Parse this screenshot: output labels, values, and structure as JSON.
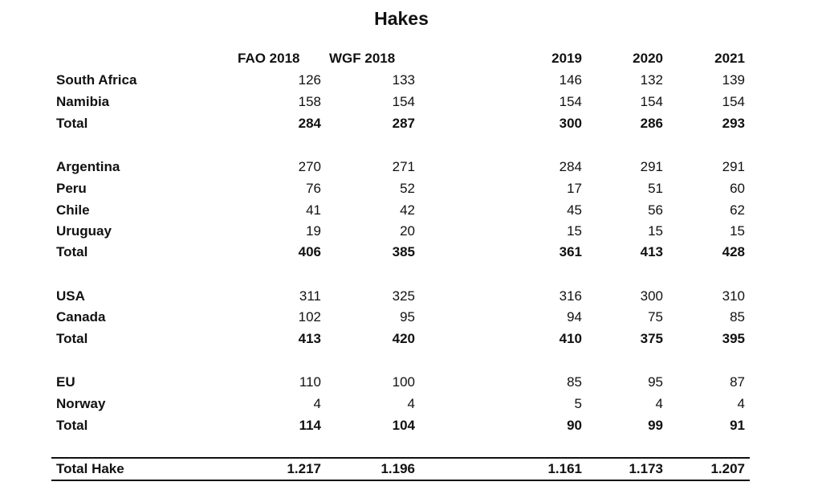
{
  "title": "Hakes",
  "headers": [
    "FAO 2018",
    "WGF 2018",
    "2019",
    "2020",
    "2021"
  ],
  "groups": [
    {
      "rows": [
        {
          "label": "South Africa",
          "values": [
            "126",
            "133",
            "146",
            "132",
            "139"
          ]
        },
        {
          "label": "Namibia",
          "values": [
            "158",
            "154",
            "154",
            "154",
            "154"
          ]
        }
      ],
      "total": {
        "label": "Total",
        "values": [
          "284",
          "287",
          "300",
          "286",
          "293"
        ]
      }
    },
    {
      "rows": [
        {
          "label": "Argentina",
          "values": [
            "270",
            "271",
            "284",
            "291",
            "291"
          ]
        },
        {
          "label": "Peru",
          "values": [
            "76",
            "52",
            "17",
            "51",
            "60"
          ]
        },
        {
          "label": "Chile",
          "values": [
            "41",
            "42",
            "45",
            "56",
            "62"
          ]
        },
        {
          "label": "Uruguay",
          "values": [
            "19",
            "20",
            "15",
            "15",
            "15"
          ]
        }
      ],
      "total": {
        "label": "Total",
        "values": [
          "406",
          "385",
          "361",
          "413",
          "428"
        ]
      }
    },
    {
      "rows": [
        {
          "label": "USA",
          "values": [
            "311",
            "325",
            "316",
            "300",
            "310"
          ]
        },
        {
          "label": "Canada",
          "values": [
            "102",
            "95",
            "94",
            "75",
            "85"
          ]
        }
      ],
      "total": {
        "label": "Total",
        "values": [
          "413",
          "420",
          "410",
          "375",
          "395"
        ]
      }
    },
    {
      "rows": [
        {
          "label": "EU",
          "values": [
            "110",
            "100",
            "85",
            "95",
            "87"
          ]
        },
        {
          "label": "Norway",
          "values": [
            "4",
            "4",
            "5",
            "4",
            "4"
          ]
        }
      ],
      "total": {
        "label": "Total",
        "values": [
          "114",
          "104",
          "90",
          "99",
          "91"
        ]
      }
    }
  ],
  "grand_total": {
    "label": "Total Hake",
    "values": [
      "1.217",
      "1.196",
      "1.161",
      "1.173",
      "1.207"
    ]
  }
}
